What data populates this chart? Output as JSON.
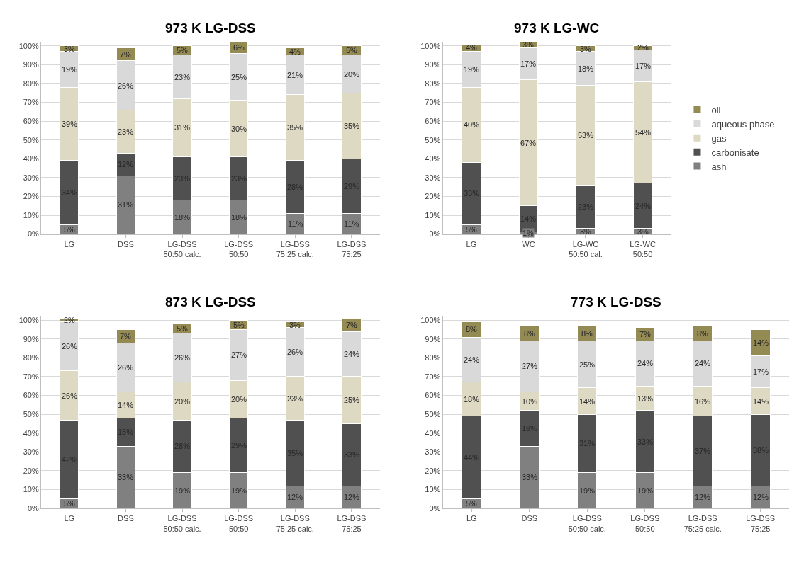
{
  "chart_data": [
    {
      "type": "bar",
      "title": "973 K LG-DSS",
      "stacked": true,
      "grid": "y",
      "ylim": [
        0,
        102
      ],
      "yticks": [
        {
          "value": 0,
          "label": "0%"
        },
        {
          "value": 10,
          "label": "10%"
        },
        {
          "value": 20,
          "label": "20%"
        },
        {
          "value": 30,
          "label": "30%"
        },
        {
          "value": 40,
          "label": "40%"
        },
        {
          "value": 50,
          "label": "50%"
        },
        {
          "value": 60,
          "label": "60%"
        },
        {
          "value": 70,
          "label": "70%"
        },
        {
          "value": 80,
          "label": "80%"
        },
        {
          "value": 90,
          "label": "90%"
        },
        {
          "value": 100,
          "label": "100%"
        }
      ],
      "categories": [
        "LG",
        "DSS",
        "LG-DSS\n50:50 calc.",
        "LG-DSS\n50:50",
        "LG-DSS\n75:25 calc.",
        "LG-DSS\n75:25"
      ],
      "series": [
        {
          "color": "#808080",
          "values": [
            5,
            31,
            18,
            18,
            11,
            11
          ],
          "value_labels": [
            "5%",
            "31%",
            "18%",
            "18%",
            "11%",
            "11%"
          ]
        },
        {
          "color": "#505050",
          "values": [
            34,
            12,
            23,
            23,
            28,
            29
          ],
          "value_labels": [
            "34%",
            "12%",
            "23%",
            "23%",
            "28%",
            "29%"
          ]
        },
        {
          "color": "#ddd9c3",
          "values": [
            39,
            23,
            31,
            30,
            35,
            35
          ],
          "value_labels": [
            "39%",
            "23%",
            "31%",
            "30%",
            "35%",
            "35%"
          ]
        },
        {
          "color": "#d9d9d9",
          "values": [
            19,
            26,
            23,
            25,
            21,
            20
          ],
          "value_labels": [
            "19%",
            "26%",
            "23%",
            "25%",
            "21%",
            "20%"
          ]
        },
        {
          "color": "#948a54",
          "values": [
            3,
            7,
            5,
            6,
            4,
            5
          ],
          "value_labels": [
            "3%",
            "7%",
            "5%",
            "6%",
            "4%",
            "5%"
          ]
        }
      ]
    },
    {
      "type": "bar",
      "title": "973 K LG-WC",
      "stacked": true,
      "grid": "y",
      "legend": "right",
      "ylim": [
        0,
        102
      ],
      "yticks": [
        {
          "value": 0,
          "label": "0%"
        },
        {
          "value": 10,
          "label": "10%"
        },
        {
          "value": 20,
          "label": "20%"
        },
        {
          "value": 30,
          "label": "30%"
        },
        {
          "value": 40,
          "label": "40%"
        },
        {
          "value": 50,
          "label": "50%"
        },
        {
          "value": 60,
          "label": "60%"
        },
        {
          "value": 70,
          "label": "70%"
        },
        {
          "value": 80,
          "label": "80%"
        },
        {
          "value": 90,
          "label": "90%"
        },
        {
          "value": 100,
          "label": "100%"
        }
      ],
      "categories": [
        "LG",
        "WC",
        "LG-WC\n50:50 cal.",
        "LG-WC\n50:50"
      ],
      "series": [
        {
          "name": "ash",
          "color": "#808080",
          "values": [
            5,
            1,
            3,
            3
          ],
          "value_labels": [
            "5%",
            "1%",
            "3%",
            "3%"
          ]
        },
        {
          "name": "carbonisate",
          "color": "#505050",
          "values": [
            33,
            14,
            23,
            24
          ],
          "value_labels": [
            "33%",
            "14%",
            "23%",
            "24%"
          ]
        },
        {
          "name": "gas",
          "color": "#ddd9c3",
          "values": [
            40,
            67,
            53,
            54
          ],
          "value_labels": [
            "40%",
            "67%",
            "53%",
            "54%"
          ]
        },
        {
          "name": "aqueous phase",
          "color": "#d9d9d9",
          "values": [
            19,
            17,
            18,
            17
          ],
          "value_labels": [
            "19%",
            "17%",
            "18%",
            "17%"
          ]
        },
        {
          "name": "oil",
          "color": "#948a54",
          "values": [
            4,
            3,
            3,
            2
          ],
          "value_labels": [
            "4%",
            "3%",
            "3%",
            "2%"
          ]
        }
      ]
    },
    {
      "type": "bar",
      "title": "873 K LG-DSS",
      "stacked": true,
      "grid": "y",
      "ylim": [
        0,
        102
      ],
      "yticks": [
        {
          "value": 0,
          "label": "0%"
        },
        {
          "value": 10,
          "label": "10%"
        },
        {
          "value": 20,
          "label": "20%"
        },
        {
          "value": 30,
          "label": "30%"
        },
        {
          "value": 40,
          "label": "40%"
        },
        {
          "value": 50,
          "label": "50%"
        },
        {
          "value": 60,
          "label": "60%"
        },
        {
          "value": 70,
          "label": "70%"
        },
        {
          "value": 80,
          "label": "80%"
        },
        {
          "value": 90,
          "label": "90%"
        },
        {
          "value": 100,
          "label": "100%"
        }
      ],
      "categories": [
        "LG",
        "DSS",
        "LG-DSS\n50:50 calc.",
        "LG-DSS\n50:50",
        "LG-DSS\n75:25 calc.",
        "LG-DSS\n75:25"
      ],
      "series": [
        {
          "color": "#808080",
          "values": [
            5,
            33,
            19,
            19,
            12,
            12
          ],
          "value_labels": [
            "5%",
            "33%",
            "19%",
            "19%",
            "12%",
            "12%"
          ]
        },
        {
          "color": "#505050",
          "values": [
            42,
            15,
            28,
            29,
            35,
            33
          ],
          "value_labels": [
            "42%",
            "15%",
            "28%",
            "29%",
            "35%",
            "33%"
          ]
        },
        {
          "color": "#ddd9c3",
          "values": [
            26,
            14,
            20,
            20,
            23,
            25
          ],
          "value_labels": [
            "26%",
            "14%",
            "20%",
            "20%",
            "23%",
            "25%"
          ]
        },
        {
          "color": "#d9d9d9",
          "values": [
            26,
            26,
            26,
            27,
            26,
            24
          ],
          "value_labels": [
            "26%",
            "26%",
            "26%",
            "27%",
            "26%",
            "24%"
          ]
        },
        {
          "color": "#948a54",
          "values": [
            2,
            7,
            5,
            5,
            3,
            7
          ],
          "value_labels": [
            "2%",
            "7%",
            "5%",
            "5%",
            "3%",
            "7%"
          ]
        }
      ]
    },
    {
      "type": "bar",
      "title": "773 K LG-DSS",
      "stacked": true,
      "grid": "y",
      "ylim": [
        0,
        102
      ],
      "yticks": [
        {
          "value": 0,
          "label": "0%"
        },
        {
          "value": 10,
          "label": "10%"
        },
        {
          "value": 20,
          "label": "20%"
        },
        {
          "value": 30,
          "label": "30%"
        },
        {
          "value": 40,
          "label": "40%"
        },
        {
          "value": 50,
          "label": "50%"
        },
        {
          "value": 60,
          "label": "60%"
        },
        {
          "value": 70,
          "label": "70%"
        },
        {
          "value": 80,
          "label": "80%"
        },
        {
          "value": 90,
          "label": "90%"
        },
        {
          "value": 100,
          "label": "100%"
        }
      ],
      "categories": [
        "LG",
        "DSS",
        "LG-DSS\n50:50 calc.",
        "LG-DSS\n50:50",
        "LG-DSS\n75:25 calc.",
        "LG-DSS\n75:25"
      ],
      "series": [
        {
          "color": "#808080",
          "values": [
            5,
            33,
            19,
            19,
            12,
            12
          ],
          "value_labels": [
            "5%",
            "33%",
            "19%",
            "19%",
            "12%",
            "12%"
          ]
        },
        {
          "color": "#505050",
          "values": [
            44,
            19,
            31,
            33,
            37,
            38
          ],
          "value_labels": [
            "44%",
            "19%",
            "31%",
            "33%",
            "37%",
            "38%"
          ]
        },
        {
          "color": "#ddd9c3",
          "values": [
            18,
            10,
            14,
            13,
            16,
            14
          ],
          "value_labels": [
            "18%",
            "10%",
            "14%",
            "13%",
            "16%",
            "14%"
          ]
        },
        {
          "color": "#d9d9d9",
          "values": [
            24,
            27,
            25,
            24,
            24,
            17
          ],
          "value_labels": [
            "24%",
            "27%",
            "25%",
            "24%",
            "24%",
            "17%"
          ]
        },
        {
          "color": "#948a54",
          "values": [
            8,
            8,
            8,
            7,
            8,
            14
          ],
          "value_labels": [
            "8%",
            "8%",
            "8%",
            "7%",
            "8%",
            "14%"
          ]
        }
      ]
    }
  ]
}
